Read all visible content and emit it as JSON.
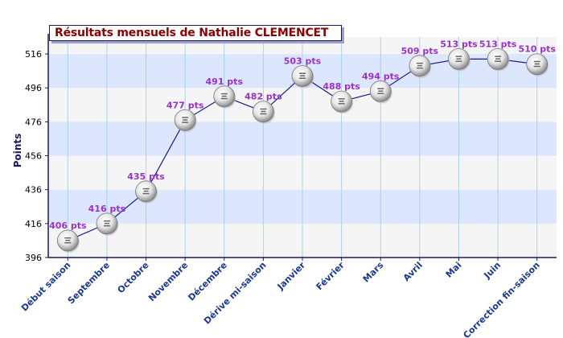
{
  "chart_data": {
    "type": "line",
    "title": "Résultats mensuels de Nathalie CLEMENCET",
    "xlabel": "",
    "ylabel": "Points",
    "ylim": [
      396,
      526
    ],
    "yticks": [
      396,
      416,
      436,
      456,
      476,
      496,
      516
    ],
    "grid": true,
    "categories": [
      "Début saison",
      "Septembre",
      "Octobre",
      "Novembre",
      "Décembre",
      "Dérive mi-saison",
      "Janvier",
      "Février",
      "Mars",
      "Avril",
      "Mai",
      "Juin",
      "Correction fin-saison"
    ],
    "series": [
      {
        "values": [
          406,
          416,
          435,
          477,
          491,
          482,
          503,
          488,
          494,
          509,
          513,
          513,
          510
        ],
        "data_labels": [
          "406 pts",
          "416 pts",
          "435 pts",
          "477 pts",
          "491 pts",
          "482 pts",
          "503 pts",
          "488 pts",
          "494 pts",
          "509 pts",
          "513 pts",
          "513 pts",
          "510 pts"
        ]
      }
    ]
  },
  "colors": {
    "band_blue": "#dce6fd",
    "band_gray": "#f5f5f5",
    "gridline": "#a9d3ea",
    "axis": "#1a1a5e",
    "line": "#1a1a8e",
    "data_label": "#9932cc",
    "title": "#8b0000",
    "category_label": "#1a3a8e"
  },
  "marker_icon": "ping-pong-ball-icon"
}
